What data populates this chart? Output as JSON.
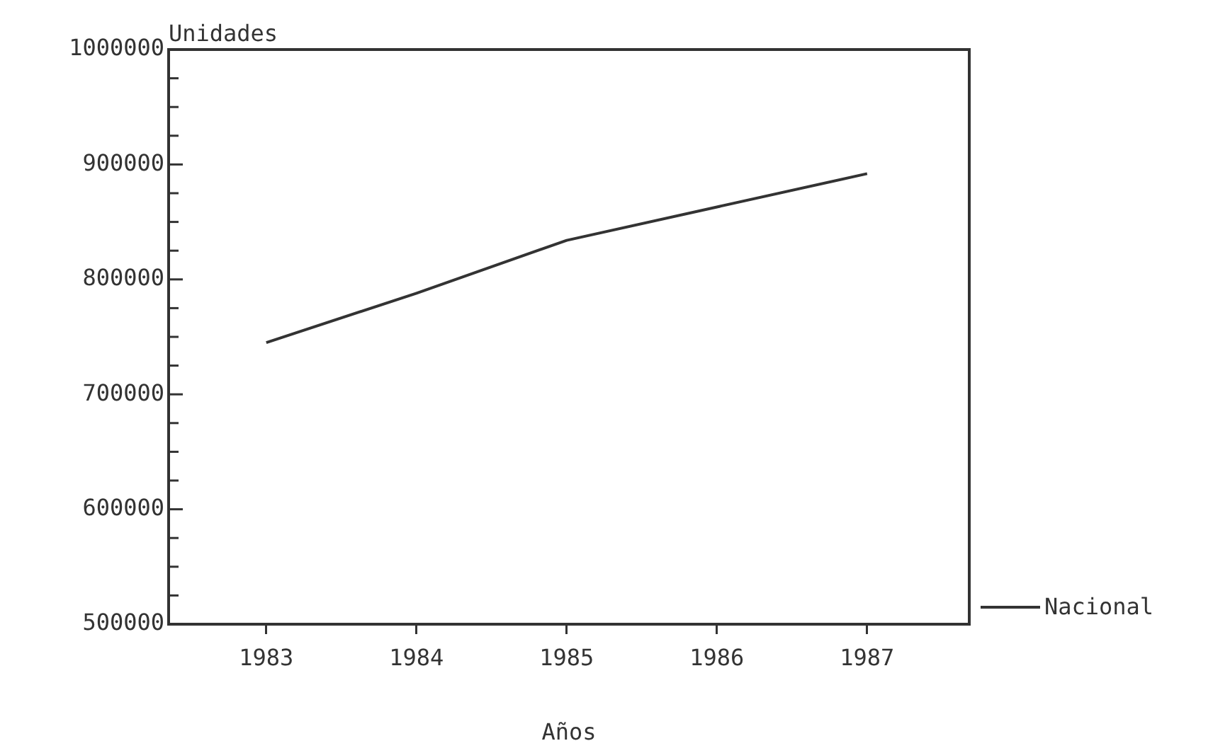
{
  "chart_data": {
    "type": "line",
    "xlabel": "Años",
    "ylabel": "Unidades",
    "x": [
      1983,
      1984,
      1985,
      1986,
      1987
    ],
    "series": [
      {
        "name": "Nacional",
        "color": "#333333",
        "values": [
          745000,
          788000,
          834000,
          863000,
          892000
        ]
      }
    ],
    "xlim": [
      1982.35,
      1987.68
    ],
    "xticks": [
      1983,
      1984,
      1985,
      1986,
      1987
    ],
    "ylim": [
      500000,
      1000000
    ],
    "yticks": [
      500000,
      {
        "value": 525000,
        "label": null
      },
      {
        "value": 550000,
        "label": null
      },
      {
        "value": 575000,
        "label": null
      },
      600000,
      {
        "value": 625000,
        "label": null
      },
      {
        "value": 650000,
        "label": null
      },
      {
        "value": 675000,
        "label": null
      },
      700000,
      {
        "value": 725000,
        "label": null
      },
      {
        "value": 750000,
        "label": null
      },
      {
        "value": 775000,
        "label": null
      },
      800000,
      {
        "value": 825000,
        "label": null
      },
      {
        "value": 850000,
        "label": null
      },
      {
        "value": 875000,
        "label": null
      },
      900000,
      {
        "value": 925000,
        "label": null
      },
      {
        "value": 950000,
        "label": null
      },
      {
        "value": 975000,
        "label": null
      },
      1000000
    ],
    "legend": "bottom right",
    "grid": false,
    "marker": "none",
    "line_style": "solid"
  }
}
